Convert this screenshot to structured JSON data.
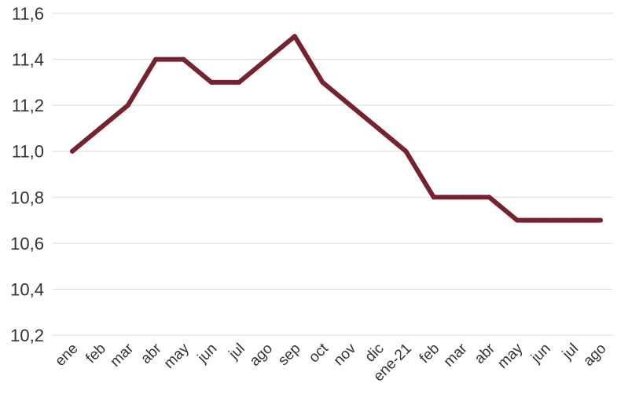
{
  "chart_data": {
    "type": "line",
    "categories": [
      "ene",
      "feb",
      "mar",
      "abr",
      "may",
      "jun",
      "jul",
      "ago",
      "sep",
      "oct",
      "nov",
      "dic",
      "ene-21",
      "feb",
      "mar",
      "abr",
      "may",
      "jun",
      "jul",
      "ago"
    ],
    "series": [
      {
        "values": [
          11.0,
          11.1,
          11.2,
          11.4,
          11.4,
          11.3,
          11.3,
          11.4,
          11.5,
          11.3,
          11.2,
          11.1,
          11.0,
          10.8,
          10.8,
          10.8,
          10.7,
          10.7,
          10.7,
          10.7
        ]
      }
    ],
    "yticks": [
      "10,2",
      "10,4",
      "10,6",
      "10,8",
      "11,0",
      "11,2",
      "11,4",
      "11,6"
    ],
    "ylim": [
      10.2,
      11.6
    ],
    "title": "",
    "xlabel": "",
    "ylabel": "",
    "grid": true,
    "line_color": "#76232f",
    "grid_color": "#d9d9d9"
  }
}
